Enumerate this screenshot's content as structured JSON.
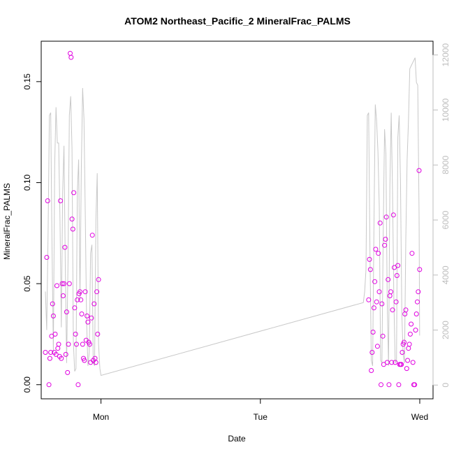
{
  "chart_data": {
    "type": "scatter",
    "title": "ATOM2 Northeast_Pacific_2 MineralFrac_PALMS",
    "xlabel": "Date",
    "ylabel": "MineralFrac_PALMS",
    "x_ticks": [
      "Mon",
      "Tue",
      "Wed"
    ],
    "x_range": [
      "Sun 15:00",
      "Wed 02:00"
    ],
    "ylim": [
      -0.007,
      0.17
    ],
    "y_ticks": [
      "0.00",
      "0.05",
      "0.10",
      "0.15"
    ],
    "y2lim": [
      -500,
      12500
    ],
    "y2_ticks": [
      "0",
      "2000",
      "4000",
      "6000",
      "8000",
      "10000",
      "12000"
    ],
    "grid": false,
    "legend": "none",
    "colors": {
      "points": "#e000e0",
      "line": "#c8c8c8",
      "right_axis": "#bdbdbd"
    },
    "series": [
      {
        "type": "scatter",
        "axis": "left",
        "t": [
          "Sun 15:38",
          "Sun 15:50",
          "Sun 15:58",
          "Sun 16:10",
          "Sun 16:18",
          "Sun 16:26",
          "Sun 16:34",
          "Sun 16:42",
          "Sun 16:50",
          "Sun 16:58",
          "Sun 17:06",
          "Sun 17:14",
          "Sun 17:22",
          "Sun 17:30",
          "Sun 17:38",
          "Sun 17:46",
          "Sun 17:54",
          "Sun 18:02",
          "Sun 18:10",
          "Sun 18:18",
          "Sun 18:26",
          "Sun 18:34",
          "Sun 18:42",
          "Sun 18:50",
          "Sun 18:58",
          "Sun 19:06",
          "Sun 19:14",
          "Sun 19:22",
          "Sun 19:30",
          "Sun 19:38",
          "Sun 19:46",
          "Sun 19:54",
          "Sun 20:02",
          "Sun 20:10",
          "Sun 20:18",
          "Sun 20:26",
          "Sun 20:34",
          "Sun 20:42",
          "Sun 20:50",
          "Sun 20:58",
          "Sun 21:06",
          "Sun 21:14",
          "Sun 21:22",
          "Sun 21:30",
          "Sun 21:38",
          "Sun 21:46",
          "Sun 21:54",
          "Sun 22:02",
          "Sun 22:10",
          "Sun 22:18",
          "Sun 22:26",
          "Sun 22:34",
          "Sun 22:42",
          "Sun 22:50",
          "Sun 22:58",
          "Sun 23:06",
          "Sun 23:14",
          "Sun 23:22",
          "Sun 23:30",
          "Sun 23:38",
          "Tue 16:18",
          "Tue 16:26",
          "Tue 16:34",
          "Tue 16:42",
          "Tue 16:50",
          "Tue 16:58",
          "Tue 17:06",
          "Tue 17:14",
          "Tue 17:22",
          "Tue 17:30",
          "Tue 17:38",
          "Tue 17:46",
          "Tue 17:54",
          "Tue 18:02",
          "Tue 18:10",
          "Tue 18:18",
          "Tue 18:26",
          "Tue 18:34",
          "Tue 18:42",
          "Tue 18:50",
          "Tue 18:58",
          "Tue 19:06",
          "Tue 19:14",
          "Tue 19:22",
          "Tue 19:30",
          "Tue 19:38",
          "Tue 19:46",
          "Tue 19:54",
          "Tue 20:02",
          "Tue 20:10",
          "Tue 20:18",
          "Tue 20:26",
          "Tue 20:34",
          "Tue 20:42",
          "Tue 20:50",
          "Tue 20:58",
          "Tue 21:06",
          "Tue 21:14",
          "Tue 21:22",
          "Tue 21:30",
          "Tue 21:38",
          "Tue 21:46",
          "Tue 21:54",
          "Tue 22:02",
          "Tue 22:10",
          "Tue 22:18",
          "Tue 22:26",
          "Tue 22:34",
          "Tue 22:42",
          "Tue 22:50",
          "Tue 22:58",
          "Tue 23:06",
          "Tue 23:14",
          "Tue 23:22",
          "Tue 23:30",
          "Tue 23:38",
          "Tue 23:46",
          "Tue 23:54",
          "Tue 23:59"
        ],
        "y": [
          0.016,
          0.063,
          0.091,
          0.0,
          0.013,
          0.016,
          0.024,
          0.04,
          0.034,
          0.016,
          0.025,
          0.015,
          0.049,
          0.018,
          0.02,
          0.014,
          0.091,
          0.013,
          0.05,
          0.044,
          0.05,
          0.068,
          0.015,
          0.036,
          0.006,
          0.02,
          0.05,
          0.164,
          0.162,
          0.082,
          0.077,
          0.095,
          0.038,
          0.025,
          0.02,
          0.042,
          0.0,
          0.045,
          0.046,
          0.042,
          0.035,
          0.02,
          0.013,
          0.012,
          0.046,
          0.022,
          0.034,
          0.031,
          0.021,
          0.02,
          0.011,
          0.033,
          0.074,
          0.012,
          0.04,
          0.013,
          0.011,
          0.046,
          0.025,
          0.052,
          0.042,
          0.062,
          0.057,
          0.007,
          0.016,
          0.026,
          0.038,
          0.051,
          0.067,
          0.041,
          0.019,
          0.065,
          0.046,
          0.08,
          0.0,
          0.04,
          0.024,
          0.01,
          0.069,
          0.072,
          0.083,
          0.011,
          0.052,
          0.0,
          0.044,
          0.046,
          0.011,
          0.037,
          0.084,
          0.058,
          0.011,
          0.041,
          0.054,
          0.059,
          0.0,
          0.01,
          0.01,
          0.01,
          0.016,
          0.02,
          0.021,
          0.035,
          0.037,
          0.008,
          0.012,
          0.018,
          0.02,
          0.025,
          0.03,
          0.065,
          0.011,
          0.0,
          0.0,
          0.027,
          0.035,
          0.041,
          0.046,
          0.106,
          0.057
        ]
      },
      {
        "type": "line",
        "axis": "right",
        "t": [
          "Sun 15:38",
          "Sun 15:50",
          "Sun 16:02",
          "Sun 16:14",
          "Sun 16:26",
          "Sun 16:38",
          "Sun 16:50",
          "Sun 17:02",
          "Sun 17:14",
          "Sun 17:26",
          "Sun 17:38",
          "Sun 17:50",
          "Sun 18:02",
          "Sun 18:14",
          "Sun 18:26",
          "Sun 18:38",
          "Sun 18:50",
          "Sun 19:02",
          "Sun 19:14",
          "Sun 19:26",
          "Sun 19:38",
          "Sun 19:50",
          "Sun 20:02",
          "Sun 20:14",
          "Sun 20:26",
          "Sun 20:38",
          "Sun 20:50",
          "Sun 21:02",
          "Sun 21:14",
          "Sun 21:26",
          "Sun 21:38",
          "Sun 21:50",
          "Sun 22:02",
          "Sun 22:14",
          "Sun 22:26",
          "Sun 22:38",
          "Sun 22:50",
          "Sun 23:02",
          "Sun 23:14",
          "Sun 23:26",
          "Sun 23:38",
          "Sun 23:50",
          "Mon 00:00",
          "Tue 15:30",
          "Tue 15:42",
          "Tue 15:54",
          "Tue 16:06",
          "Tue 16:18",
          "Tue 16:30",
          "Tue 16:42",
          "Tue 16:54",
          "Tue 17:06",
          "Tue 17:18",
          "Tue 17:30",
          "Tue 17:42",
          "Tue 17:54",
          "Tue 18:06",
          "Tue 18:18",
          "Tue 18:30",
          "Tue 18:42",
          "Tue 18:54",
          "Tue 19:06",
          "Tue 19:18",
          "Tue 19:30",
          "Tue 19:42",
          "Tue 19:54",
          "Tue 20:06",
          "Tue 20:18",
          "Tue 20:30",
          "Tue 20:42",
          "Tue 20:54",
          "Tue 21:06",
          "Tue 21:18",
          "Tue 21:30",
          "Tue 21:42",
          "Tue 21:54",
          "Tue 22:06",
          "Tue 22:18",
          "Tue 22:30",
          "Tue 22:42",
          "Tue 22:54",
          "Tue 23:06",
          "Tue 23:18",
          "Tue 23:30",
          "Tue 23:42",
          "Tue 23:54",
          "Tue 23:59"
        ],
        "y": [
          3400,
          2000,
          5400,
          9800,
          9900,
          5000,
          1200,
          8000,
          10100,
          8800,
          8800,
          6000,
          2100,
          7000,
          8700,
          4300,
          800,
          4500,
          9800,
          10500,
          8600,
          1600,
          500,
          600,
          7000,
          8200,
          3100,
          7800,
          10800,
          9700,
          6200,
          2300,
          700,
          1200,
          4800,
          5100,
          800,
          700,
          6000,
          7700,
          1500,
          600,
          350,
          3000,
          3400,
          4200,
          9800,
          9900,
          4800,
          900,
          700,
          5800,
          10200,
          9600,
          8500,
          6500,
          900,
          800,
          5600,
          9300,
          8400,
          3000,
          700,
          7200,
          9900,
          7000,
          3100,
          800,
          900,
          9000,
          9800,
          7400,
          2600,
          1100,
          800,
          5300,
          8200,
          9600,
          11500,
          11600,
          11700,
          11800,
          11900,
          11000,
          10900,
          6200,
          1800
        ]
      }
    ]
  }
}
